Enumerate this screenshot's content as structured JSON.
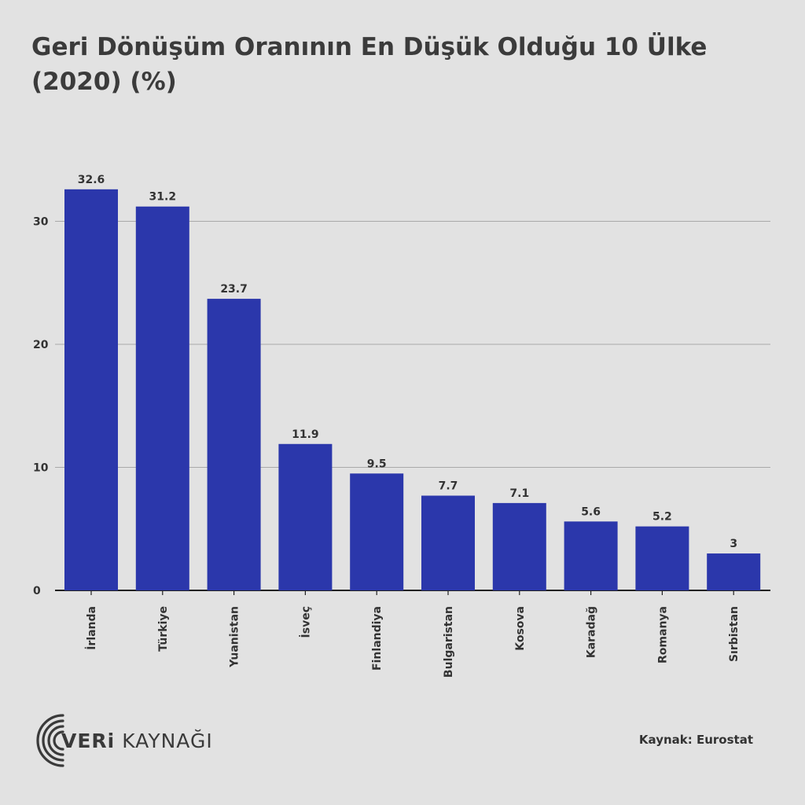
{
  "chart_data": {
    "type": "bar",
    "title": "Geri Dönüşüm Oranının En Düşük Olduğu 10 Ülke (2020) (%)",
    "categories": [
      "İrlanda",
      "Türkiye",
      "Yuanistan",
      "İsveç",
      "Finlandiya",
      "Bulgaristan",
      "Kosova",
      "Karadağ",
      "Romanya",
      "Sırbistan"
    ],
    "values": [
      32.6,
      31.2,
      23.7,
      11.9,
      9.5,
      7.7,
      7.1,
      5.6,
      5.2,
      3
    ],
    "value_labels": [
      "32.6",
      "31.2",
      "23.7",
      "11.9",
      "9.5",
      "7.7",
      "7.1",
      "5.6",
      "5.2",
      "3"
    ],
    "yticks": [
      0,
      10,
      20,
      30
    ],
    "ytick_labels": [
      "0",
      "10",
      "20",
      "30"
    ],
    "ylim": [
      0,
      34
    ],
    "xlabel": "",
    "ylabel": "",
    "grid": true,
    "bar_color": "#2b37ab"
  },
  "source": "Kaynak: Eurostat",
  "logo": {
    "text_bold": "VERi",
    "text_light": " KAYNAĞI",
    "icon": "concentric-arcs-icon"
  }
}
